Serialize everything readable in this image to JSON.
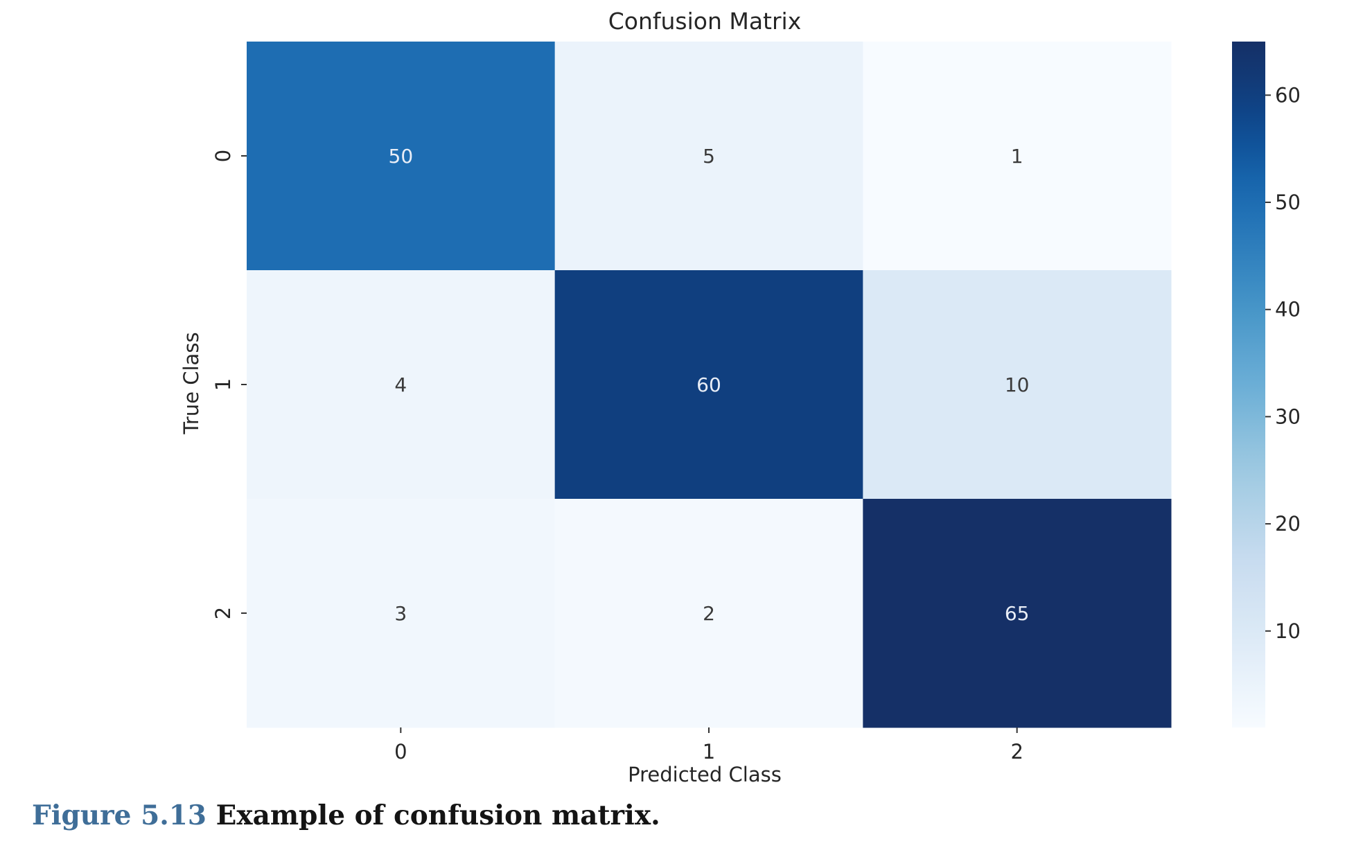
{
  "chart_data": {
    "type": "heatmap",
    "title": "Confusion Matrix",
    "xlabel": "Predicted Class",
    "ylabel": "True Class",
    "x_categories": [
      "0",
      "1",
      "2"
    ],
    "y_categories": [
      "0",
      "1",
      "2"
    ],
    "values": [
      [
        50,
        5,
        1
      ],
      [
        4,
        60,
        10
      ],
      [
        3,
        2,
        65
      ]
    ],
    "colormap": "Blues",
    "colorbar": {
      "range": [
        1,
        65
      ],
      "ticks": [
        10,
        20,
        30,
        40,
        50,
        60
      ],
      "tick_labels": [
        "10",
        "20",
        "30",
        "40",
        "50",
        "60"
      ]
    }
  },
  "caption": {
    "label": "Figure 5.13",
    "text": "Example of confusion matrix."
  }
}
